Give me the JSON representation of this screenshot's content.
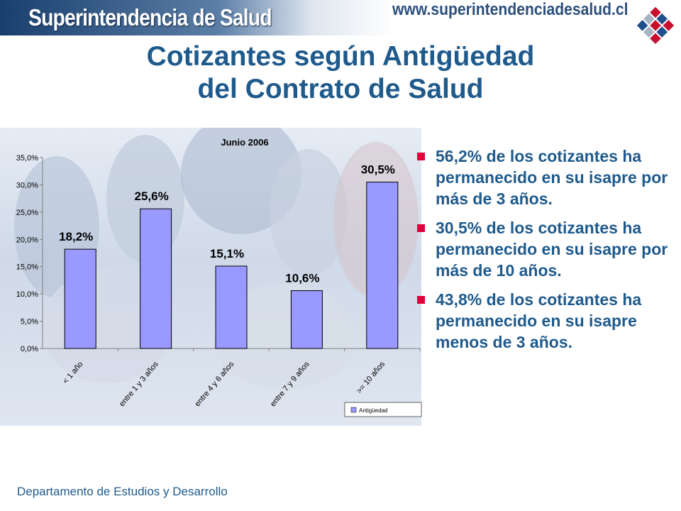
{
  "header": {
    "brand": "Superintendencia de Salud",
    "url": "www.superintendenciadesalud.cl"
  },
  "slide": {
    "title_line1": "Cotizantes según Antigüedad",
    "title_line2": "del Contrato de Salud"
  },
  "bullets": [
    "56,2% de los cotizantes ha permanecido en su isapre por más de 3 años.",
    "30,5% de los cotizantes ha permanecido en su isapre por más de 10 años.",
    "43,8% de los cotizantes ha permanecido en su isapre menos de 3 años."
  ],
  "footer": "Departamento de Estudios y Desarrollo",
  "colors": {
    "title": "#1f5a8c",
    "bar": "#9999ff",
    "bullet": "#e0003c"
  },
  "chart_data": {
    "type": "bar",
    "title": "Junio 2006",
    "categories": [
      "< 1 año",
      "entre 1 y 3 años",
      "entre 4 y 6 años",
      "entre 7 y 9 años",
      ">= 10 años"
    ],
    "series": [
      {
        "name": "Antigüedad",
        "values": [
          18.2,
          25.6,
          15.1,
          10.6,
          30.5
        ]
      }
    ],
    "data_labels": [
      "18,2%",
      "25,6%",
      "15,1%",
      "10,6%",
      "30,5%"
    ],
    "y_ticks": [
      0,
      5,
      10,
      15,
      20,
      25,
      30,
      35
    ],
    "y_tick_labels": [
      "0,0%",
      "5,0%",
      "10,0%",
      "15,0%",
      "20,0%",
      "25,0%",
      "30,0%",
      "35,0%"
    ],
    "ylim": [
      0,
      35
    ],
    "grid": false,
    "legend": "bottom-right"
  }
}
